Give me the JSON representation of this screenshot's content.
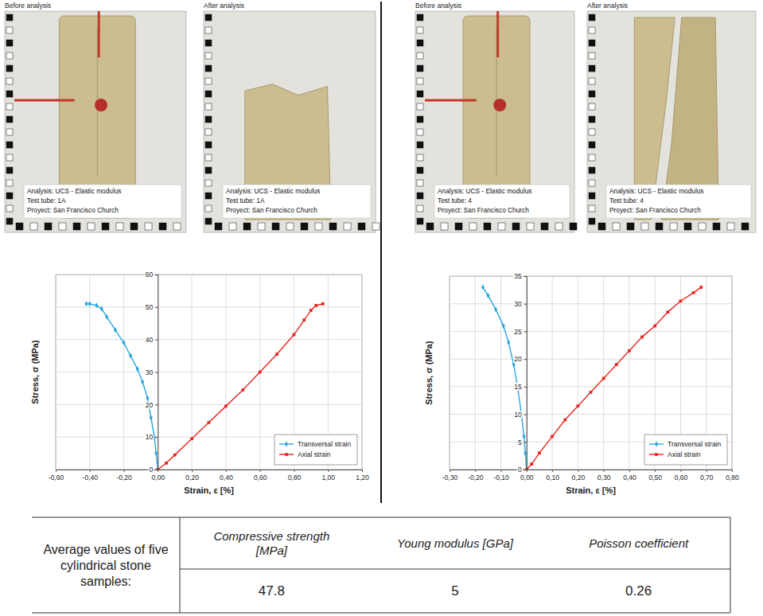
{
  "chart_data": [
    {
      "type": "line",
      "x_label": "Strain, ε [%]",
      "y_label": "Stress, σ (MPa)",
      "xlim": [
        -0.6,
        1.2
      ],
      "xticks": [
        {
          "value": -0.6,
          "label": "-0,60"
        },
        {
          "value": -0.4,
          "label": "-0,40"
        },
        {
          "value": -0.2,
          "label": "-0,20"
        },
        {
          "value": 0,
          "label": "0,00"
        },
        {
          "value": 0.2,
          "label": "0,20"
        },
        {
          "value": 0.4,
          "label": "0,40"
        },
        {
          "value": 0.6,
          "label": "0,60"
        },
        {
          "value": 0.8,
          "label": "0,80"
        },
        {
          "value": 1.0,
          "label": "1,00"
        },
        {
          "value": 1.2,
          "label": "1,20"
        }
      ],
      "ylim": [
        0,
        60
      ],
      "yticks": [
        0,
        10,
        20,
        30,
        40,
        50,
        60
      ],
      "grid": true,
      "legend": "lower right",
      "series": [
        {
          "name": "Transversal strain",
          "color": "#2aa7df",
          "marker": "diamond",
          "x": [
            0,
            -0.01,
            -0.02,
            -0.04,
            -0.06,
            -0.09,
            -0.12,
            -0.16,
            -0.2,
            -0.25,
            -0.3,
            -0.33,
            -0.36,
            -0.4,
            -0.42
          ],
          "values": [
            0,
            5,
            10,
            16,
            22,
            27,
            31,
            35,
            39,
            43,
            47,
            49.5,
            50.5,
            51,
            51
          ]
        },
        {
          "name": "Axial strain",
          "color": "#e8261e",
          "marker": "square",
          "x": [
            0,
            0.05,
            0.1,
            0.2,
            0.3,
            0.4,
            0.5,
            0.6,
            0.7,
            0.8,
            0.86,
            0.9,
            0.93,
            0.97
          ],
          "values": [
            0,
            2,
            4.5,
            9.5,
            14.5,
            19.5,
            24.5,
            30,
            35.5,
            41.5,
            46,
            49,
            50.5,
            51
          ]
        }
      ]
    },
    {
      "type": "line",
      "x_label": "Strain, ε [%]",
      "y_label": "Stress, σ (MPa)",
      "xlim": [
        -0.3,
        0.8
      ],
      "xticks": [
        {
          "value": -0.3,
          "label": "-0,30"
        },
        {
          "value": -0.2,
          "label": "-0,20"
        },
        {
          "value": -0.1,
          "label": "-0,10"
        },
        {
          "value": 0,
          "label": "0,00"
        },
        {
          "value": 0.1,
          "label": "0,10"
        },
        {
          "value": 0.2,
          "label": "0,20"
        },
        {
          "value": 0.3,
          "label": "0,30"
        },
        {
          "value": 0.4,
          "label": "0,40"
        },
        {
          "value": 0.5,
          "label": "0,50"
        },
        {
          "value": 0.6,
          "label": "0,60"
        },
        {
          "value": 0.7,
          "label": "0,70"
        },
        {
          "value": 0.8,
          "label": "0,80"
        }
      ],
      "ylim": [
        0,
        35
      ],
      "yticks": [
        0,
        5,
        10,
        15,
        20,
        25,
        30,
        35
      ],
      "grid": true,
      "legend": "lower right",
      "series": [
        {
          "name": "Transversal strain",
          "color": "#2aa7df",
          "marker": "diamond",
          "x": [
            0,
            -0.005,
            -0.01,
            -0.02,
            -0.035,
            -0.05,
            -0.07,
            -0.09,
            -0.12,
            -0.15,
            -0.17
          ],
          "values": [
            0,
            3,
            6,
            10,
            15,
            19,
            23,
            26,
            29,
            31.5,
            33
          ]
        },
        {
          "name": "Axial strain",
          "color": "#e8261e",
          "marker": "square",
          "x": [
            0,
            0.02,
            0.05,
            0.1,
            0.15,
            0.2,
            0.25,
            0.3,
            0.35,
            0.4,
            0.45,
            0.5,
            0.55,
            0.6,
            0.65,
            0.68
          ],
          "values": [
            0,
            1,
            3,
            6,
            9,
            11.5,
            14,
            16.5,
            19,
            21.5,
            24,
            26,
            28.5,
            30.5,
            32,
            33
          ]
        }
      ]
    }
  ],
  "photos": [
    {
      "heading": "Before analysis",
      "caption": [
        "Analysis: UCS - Elastic modulus",
        "Test tube: 1A",
        "Proyect: San Francisco Church"
      ]
    },
    {
      "heading": "After analysis",
      "caption": [
        "Analysis: UCS - Elastic modulus",
        "Test tube: 1A",
        "Proyect: San Francisco Church"
      ]
    },
    {
      "heading": "Before analysis",
      "caption": [
        "Analysis: UCS - Elastic modulus",
        "Test tube: 4",
        "Proyect: San Francisco Church"
      ]
    },
    {
      "heading": "After analysis",
      "caption": [
        "Analysis: UCS - Elastic modulus",
        "Test tube: 4",
        "Proyect: San Francisco Church"
      ]
    }
  ],
  "table": {
    "row_header": "Average values of five cylindrical stone samples:",
    "columns": [
      "Compressive strength [MPa]",
      "Young modulus [GPa]",
      "Poisson coefficient"
    ],
    "values": [
      47.8,
      5,
      0.26
    ]
  }
}
